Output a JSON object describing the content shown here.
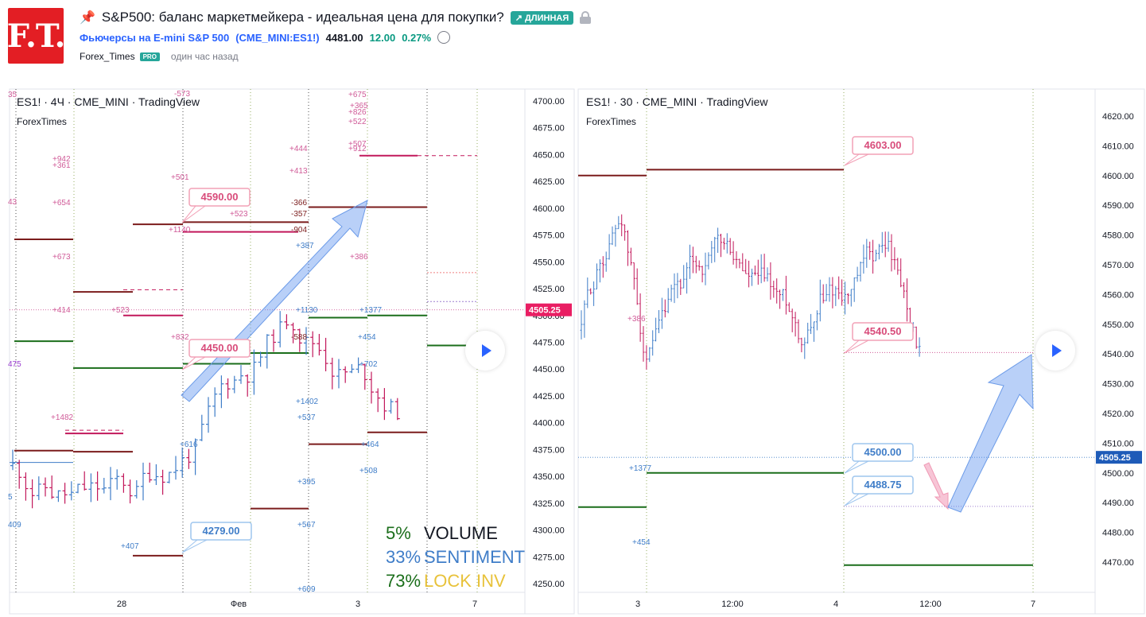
{
  "header": {
    "logo_text": "F.T.",
    "title": "S&P500: баланс маркетмейкера - идеальная цена для покупки?",
    "badge": "↗ ДЛИННАЯ",
    "symbol_name": "Фьючерсы на E-mini S&P 500",
    "symbol_code": "(CME_MINI:ES1!)",
    "last_price": "4481.00",
    "change": "12.00",
    "change_pct": "0.27%",
    "author": "Forex_Times",
    "pro": "PRO",
    "time_ago": "один час назад"
  },
  "colors": {
    "accent": "#2962ff",
    "up": "#089981",
    "down": "#c2185b",
    "level_dark_red": "#7b1c1c",
    "level_green": "#1b6e1b",
    "magenta": "#c2185b",
    "label_blue": "#3f7dc8",
    "label_pink": "#d84b7a"
  },
  "left_chart": {
    "header": "ES1! · 4Ч · CME_MINI · TradingView",
    "sub": "ForexTimes",
    "price_ticks": [
      "4700.00",
      "4675.00",
      "4650.00",
      "4625.00",
      "4600.00",
      "4575.00",
      "4550.00",
      "4525.00",
      "4500.00",
      "4475.00",
      "4450.00",
      "4425.00",
      "4400.00",
      "4375.00",
      "4350.00",
      "4325.00",
      "4300.00",
      "4275.00",
      "4250.00"
    ],
    "current_price": "4505.25",
    "time_ticks": [
      "28",
      "Фев",
      "3",
      "7"
    ],
    "callouts": [
      "4590.00",
      "4450.00",
      "4279.00"
    ],
    "legend": [
      {
        "pct": "5%",
        "name": "VOLUME"
      },
      {
        "pct": "33%",
        "name": "SENTIMENT"
      },
      {
        "pct": "73%",
        "name": "LOCK INV"
      }
    ],
    "annotations": [
      "+675",
      "+365",
      "+826",
      "+522",
      "+507",
      "+912",
      "+444",
      "+413",
      "+942",
      "+361",
      "+501",
      "+654",
      "-573",
      "35",
      "43",
      "-366",
      "-357",
      "-904",
      "+523",
      "+1140",
      "+387",
      "+386",
      "+673",
      "+414",
      "+523",
      "+1130",
      "+1377",
      "+832",
      "-588",
      "+454",
      "+702",
      "475",
      "+1402",
      "+537",
      "+1482",
      "+616",
      "+464",
      "+508",
      "+395",
      "+567",
      "+407",
      "+609",
      "409",
      "5"
    ]
  },
  "right_chart": {
    "header": "ES1! · 30 · CME_MINI · TradingView",
    "sub": "ForexTimes",
    "price_ticks": [
      "4620.00",
      "4610.00",
      "4600.00",
      "4590.00",
      "4580.00",
      "4570.00",
      "4560.00",
      "4550.00",
      "4540.00",
      "4530.00",
      "4520.00",
      "4510.00",
      "4500.00",
      "4490.00",
      "4480.00",
      "4470.00"
    ],
    "current_price": "4505.25",
    "time_ticks": [
      "3",
      "12:00",
      "4",
      "12:00",
      "7"
    ],
    "callouts": [
      "4603.00",
      "4540.50",
      "4500.00",
      "4488.75"
    ],
    "annotations": [
      "+386",
      "+1377",
      "+454"
    ]
  },
  "chart_data": {
    "type": "candlestick",
    "charts": [
      {
        "symbol": "ES1!",
        "interval": "4Ч",
        "ylim": [
          4250,
          4700
        ],
        "last": 4505.25,
        "levels": [
          4590.0,
          4450.0,
          4279.0
        ]
      },
      {
        "symbol": "ES1!",
        "interval": "30",
        "ylim": [
          4465,
          4625
        ],
        "last": 4505.25,
        "levels": [
          4603.0,
          4540.5,
          4500.0,
          4488.75
        ]
      }
    ]
  }
}
